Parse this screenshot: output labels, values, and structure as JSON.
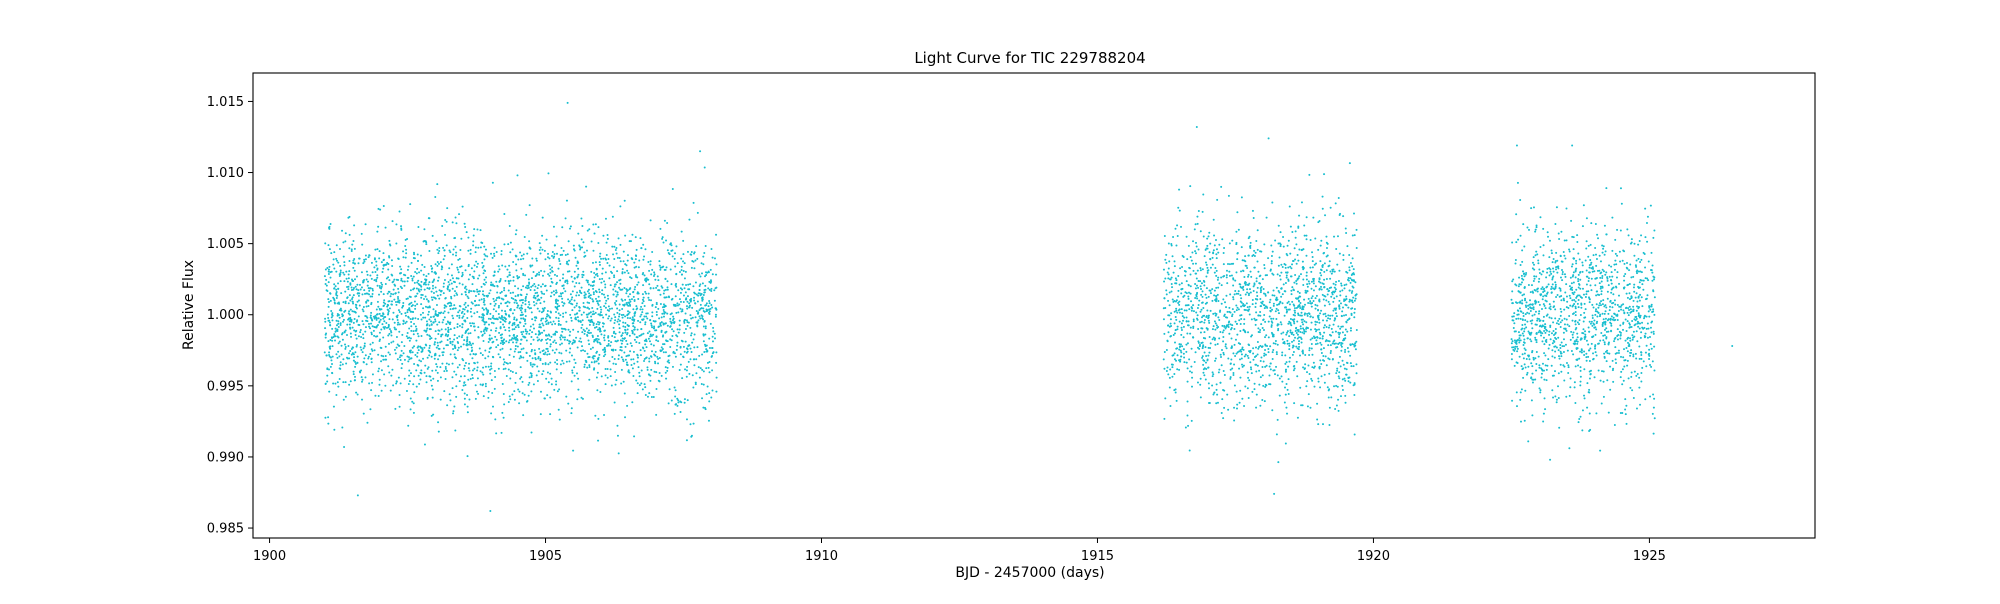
{
  "chart_data": {
    "type": "scatter",
    "title": "Light Curve for TIC 229788204",
    "xlabel": "BJD - 2457000 (days)",
    "ylabel": "Relative Flux",
    "xlim": [
      1899.7,
      1928.0
    ],
    "ylim": [
      0.9843,
      1.017
    ],
    "xticks": [
      1900,
      1905,
      1910,
      1915,
      1920,
      1925
    ],
    "yticks": [
      0.985,
      0.99,
      0.995,
      1.0,
      1.005,
      1.01,
      1.015
    ],
    "xtick_labels": [
      "1900",
      "1905",
      "1910",
      "1915",
      "1920",
      "1925"
    ],
    "ytick_labels": [
      "0.985",
      "0.990",
      "0.995",
      "1.000",
      "1.005",
      "1.010",
      "1.015"
    ],
    "grid": false,
    "marker_color": "#17becf",
    "series": [
      {
        "segments": [
          {
            "x_start": 1901.0,
            "x_end": 1908.1,
            "center": 1.0,
            "spread": 0.003,
            "points": 3600
          },
          {
            "x_start": 1916.2,
            "x_end": 1919.7,
            "center": 1.0,
            "spread": 0.0032,
            "points": 1700
          },
          {
            "x_start": 1922.5,
            "x_end": 1925.1,
            "center": 1.0,
            "spread": 0.003,
            "points": 1300
          }
        ],
        "outliers": [
          {
            "x": 1905.4,
            "y": 1.0149
          },
          {
            "x": 1904.0,
            "y": 0.9862
          },
          {
            "x": 1907.8,
            "y": 1.0115
          },
          {
            "x": 1901.6,
            "y": 0.9873
          },
          {
            "x": 1916.8,
            "y": 1.0132
          },
          {
            "x": 1918.1,
            "y": 1.0124
          },
          {
            "x": 1918.2,
            "y": 0.9874
          },
          {
            "x": 1923.6,
            "y": 1.0119
          },
          {
            "x": 1922.6,
            "y": 1.0119
          },
          {
            "x": 1923.2,
            "y": 0.9898
          },
          {
            "x": 1926.5,
            "y": 0.9978
          }
        ]
      }
    ]
  }
}
